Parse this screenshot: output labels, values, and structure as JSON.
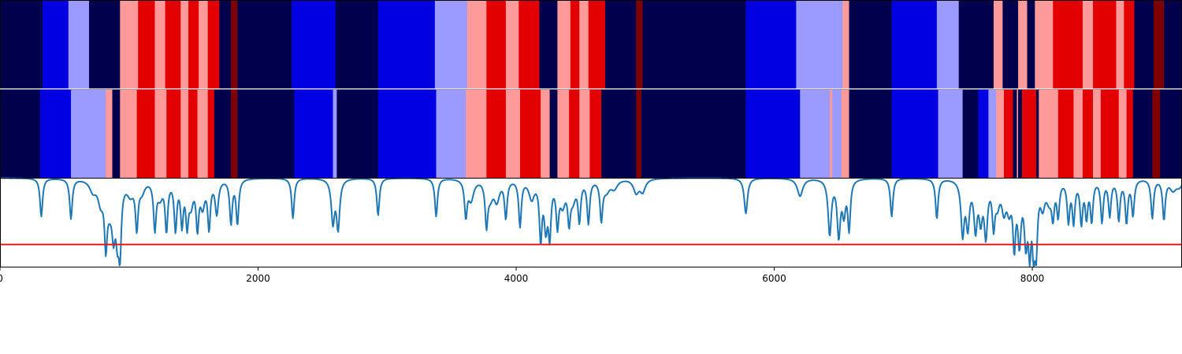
{
  "chart_data": [
    {
      "type": "heatmap",
      "colors": {
        "0": "#00004c",
        "1": "#0000e0",
        "2": "#9a9aff",
        "3": "#ff9a9a",
        "4": "#e20000",
        "5": "#800000"
      },
      "xlim": [
        0,
        9160
      ],
      "segments": [
        [
          0,
          330,
          0
        ],
        [
          330,
          530,
          1
        ],
        [
          530,
          690,
          2
        ],
        [
          690,
          930,
          0
        ],
        [
          930,
          1070,
          3
        ],
        [
          1070,
          1200,
          4
        ],
        [
          1200,
          1280,
          3
        ],
        [
          1280,
          1400,
          4
        ],
        [
          1400,
          1460,
          3
        ],
        [
          1460,
          1540,
          4
        ],
        [
          1540,
          1610,
          3
        ],
        [
          1610,
          1700,
          4
        ],
        [
          1700,
          1790,
          0
        ],
        [
          1790,
          1840,
          5
        ],
        [
          1840,
          2260,
          0
        ],
        [
          2260,
          2600,
          1
        ],
        [
          2600,
          2930,
          0
        ],
        [
          2930,
          3370,
          1
        ],
        [
          3370,
          3620,
          2
        ],
        [
          3620,
          3770,
          3
        ],
        [
          3770,
          3920,
          4
        ],
        [
          3920,
          4020,
          3
        ],
        [
          4020,
          4180,
          4
        ],
        [
          4180,
          4320,
          0
        ],
        [
          4320,
          4420,
          3
        ],
        [
          4420,
          4490,
          4
        ],
        [
          4490,
          4560,
          3
        ],
        [
          4560,
          4690,
          4
        ],
        [
          4690,
          4930,
          0
        ],
        [
          4930,
          4980,
          5
        ],
        [
          4980,
          5780,
          0
        ],
        [
          5780,
          6170,
          1
        ],
        [
          6170,
          6530,
          2
        ],
        [
          6530,
          6580,
          3
        ],
        [
          6580,
          6910,
          0
        ],
        [
          6910,
          7260,
          1
        ],
        [
          7260,
          7430,
          2
        ],
        [
          7430,
          7700,
          0
        ],
        [
          7700,
          7770,
          3
        ],
        [
          7770,
          7890,
          0
        ],
        [
          7890,
          7960,
          3
        ],
        [
          7960,
          8020,
          0
        ],
        [
          8020,
          8160,
          3
        ],
        [
          8160,
          8390,
          4
        ],
        [
          8390,
          8470,
          3
        ],
        [
          8470,
          8650,
          4
        ],
        [
          8650,
          8710,
          3
        ],
        [
          8710,
          8790,
          4
        ],
        [
          8790,
          8940,
          0
        ],
        [
          8940,
          9020,
          5
        ],
        [
          9020,
          9160,
          0
        ]
      ]
    },
    {
      "type": "heatmap",
      "xlim": [
        0,
        9160
      ],
      "segments": [
        [
          0,
          310,
          0
        ],
        [
          310,
          550,
          1
        ],
        [
          550,
          820,
          2
        ],
        [
          820,
          870,
          3
        ],
        [
          870,
          930,
          0
        ],
        [
          930,
          1060,
          3
        ],
        [
          1060,
          1200,
          4
        ],
        [
          1200,
          1290,
          3
        ],
        [
          1290,
          1400,
          4
        ],
        [
          1400,
          1460,
          3
        ],
        [
          1460,
          1530,
          4
        ],
        [
          1530,
          1610,
          3
        ],
        [
          1610,
          1660,
          4
        ],
        [
          1660,
          1790,
          0
        ],
        [
          1790,
          1840,
          5
        ],
        [
          1840,
          2280,
          0
        ],
        [
          2280,
          2580,
          1
        ],
        [
          2580,
          2610,
          2
        ],
        [
          2610,
          2930,
          0
        ],
        [
          2930,
          3380,
          1
        ],
        [
          3380,
          3610,
          2
        ],
        [
          3610,
          3770,
          3
        ],
        [
          3770,
          3920,
          4
        ],
        [
          3920,
          4030,
          3
        ],
        [
          4030,
          4190,
          4
        ],
        [
          4190,
          4260,
          3
        ],
        [
          4260,
          4320,
          0
        ],
        [
          4320,
          4410,
          3
        ],
        [
          4410,
          4490,
          4
        ],
        [
          4490,
          4570,
          3
        ],
        [
          4570,
          4660,
          4
        ],
        [
          4660,
          4930,
          0
        ],
        [
          4930,
          4970,
          5
        ],
        [
          4970,
          5780,
          0
        ],
        [
          5780,
          6200,
          1
        ],
        [
          6200,
          6430,
          2
        ],
        [
          6430,
          6450,
          3
        ],
        [
          6450,
          6520,
          2
        ],
        [
          6520,
          6580,
          3
        ],
        [
          6580,
          6910,
          0
        ],
        [
          6910,
          7270,
          1
        ],
        [
          7270,
          7460,
          2
        ],
        [
          7460,
          7580,
          0
        ],
        [
          7580,
          7660,
          1
        ],
        [
          7660,
          7720,
          2
        ],
        [
          7720,
          7780,
          3
        ],
        [
          7780,
          7850,
          4
        ],
        [
          7850,
          7880,
          0
        ],
        [
          7880,
          7890,
          3
        ],
        [
          7890,
          7920,
          0
        ],
        [
          7920,
          8030,
          4
        ],
        [
          8030,
          8050,
          0
        ],
        [
          8050,
          8200,
          3
        ],
        [
          8200,
          8320,
          4
        ],
        [
          8320,
          8390,
          3
        ],
        [
          8390,
          8470,
          4
        ],
        [
          8470,
          8530,
          3
        ],
        [
          8530,
          8670,
          4
        ],
        [
          8670,
          8730,
          3
        ],
        [
          8730,
          8780,
          4
        ],
        [
          8780,
          8930,
          0
        ],
        [
          8930,
          8990,
          5
        ],
        [
          8990,
          9160,
          0
        ]
      ]
    },
    {
      "type": "line",
      "xlim": [
        0,
        9160
      ],
      "xticks": [
        "0",
        "2000",
        "4000",
        "6000",
        "8000"
      ],
      "baseline": 1.0,
      "threshold": 0.25,
      "ylim": [
        0.0,
        1.0
      ],
      "line_color": "#1f77b4",
      "threshold_color": "#e41a1c",
      "dips": [
        [
          320,
          0.57,
          12
        ],
        [
          550,
          0.55,
          12
        ],
        [
          720,
          0.88,
          30
        ],
        [
          780,
          0.78,
          25
        ],
        [
          820,
          0.37,
          12
        ],
        [
          850,
          0.75,
          30
        ],
        [
          880,
          0.53,
          15
        ],
        [
          910,
          0.49,
          15
        ],
        [
          930,
          0.31,
          12
        ],
        [
          1010,
          0.85,
          30
        ],
        [
          1060,
          0.48,
          12
        ],
        [
          1100,
          0.88,
          25
        ],
        [
          1200,
          0.47,
          12
        ],
        [
          1240,
          0.82,
          25
        ],
        [
          1290,
          0.45,
          12
        ],
        [
          1360,
          0.45,
          12
        ],
        [
          1410,
          0.52,
          12
        ],
        [
          1450,
          0.54,
          12
        ],
        [
          1480,
          0.75,
          20
        ],
        [
          1530,
          0.49,
          12
        ],
        [
          1570,
          0.72,
          20
        ],
        [
          1620,
          0.47,
          12
        ],
        [
          1680,
          0.62,
          15
        ],
        [
          1790,
          0.51,
          12
        ],
        [
          1840,
          0.5,
          12
        ],
        [
          2270,
          0.55,
          12
        ],
        [
          2580,
          0.52,
          15
        ],
        [
          2620,
          0.45,
          15
        ],
        [
          2930,
          0.58,
          12
        ],
        [
          3380,
          0.57,
          12
        ],
        [
          3610,
          0.6,
          12
        ],
        [
          3650,
          0.77,
          25
        ],
        [
          3770,
          0.52,
          12
        ],
        [
          3800,
          0.83,
          25
        ],
        [
          3850,
          0.77,
          25
        ],
        [
          3920,
          0.58,
          12
        ],
        [
          4030,
          0.48,
          12
        ],
        [
          4120,
          0.79,
          25
        ],
        [
          4190,
          0.36,
          12
        ],
        [
          4230,
          0.5,
          15
        ],
        [
          4260,
          0.42,
          12
        ],
        [
          4320,
          0.53,
          12
        ],
        [
          4360,
          0.74,
          25
        ],
        [
          4410,
          0.59,
          12
        ],
        [
          4440,
          0.8,
          25
        ],
        [
          4490,
          0.56,
          12
        ],
        [
          4560,
          0.52,
          12
        ],
        [
          4660,
          0.56,
          12
        ],
        [
          4700,
          0.88,
          30
        ],
        [
          4760,
          0.9,
          30
        ],
        [
          4930,
          0.85,
          25
        ],
        [
          4980,
          0.86,
          25
        ],
        [
          5780,
          0.6,
          15
        ],
        [
          6200,
          0.8,
          25
        ],
        [
          6430,
          0.38,
          15
        ],
        [
          6500,
          0.38,
          15
        ],
        [
          6540,
          0.65,
          15
        ],
        [
          6580,
          0.45,
          12
        ],
        [
          6910,
          0.57,
          12
        ],
        [
          7260,
          0.55,
          12
        ],
        [
          7460,
          0.4,
          15
        ],
        [
          7500,
          0.5,
          15
        ],
        [
          7560,
          0.47,
          15
        ],
        [
          7600,
          0.6,
          15
        ],
        [
          7640,
          0.4,
          15
        ],
        [
          7700,
          0.53,
          12
        ],
        [
          7730,
          0.77,
          20
        ],
        [
          7780,
          0.7,
          20
        ],
        [
          7820,
          0.72,
          20
        ],
        [
          7860,
          0.32,
          12
        ],
        [
          7900,
          0.35,
          15
        ],
        [
          7950,
          0.37,
          15
        ],
        [
          7980,
          0.32,
          12
        ],
        [
          8010,
          0.35,
          12
        ],
        [
          8030,
          0.32,
          12
        ],
        [
          8080,
          0.74,
          20
        ],
        [
          8130,
          0.8,
          25
        ],
        [
          8160,
          0.64,
          12
        ],
        [
          8200,
          0.62,
          12
        ],
        [
          8280,
          0.55,
          12
        ],
        [
          8320,
          0.54,
          12
        ],
        [
          8380,
          0.53,
          12
        ],
        [
          8420,
          0.6,
          12
        ],
        [
          8460,
          0.55,
          12
        ],
        [
          8540,
          0.53,
          12
        ],
        [
          8600,
          0.6,
          12
        ],
        [
          8670,
          0.55,
          12
        ],
        [
          8730,
          0.52,
          12
        ],
        [
          8780,
          0.6,
          12
        ],
        [
          8930,
          0.56,
          12
        ],
        [
          9020,
          0.55,
          12
        ],
        [
          9090,
          0.88,
          30
        ],
        [
          9140,
          0.92,
          30
        ]
      ]
    }
  ]
}
